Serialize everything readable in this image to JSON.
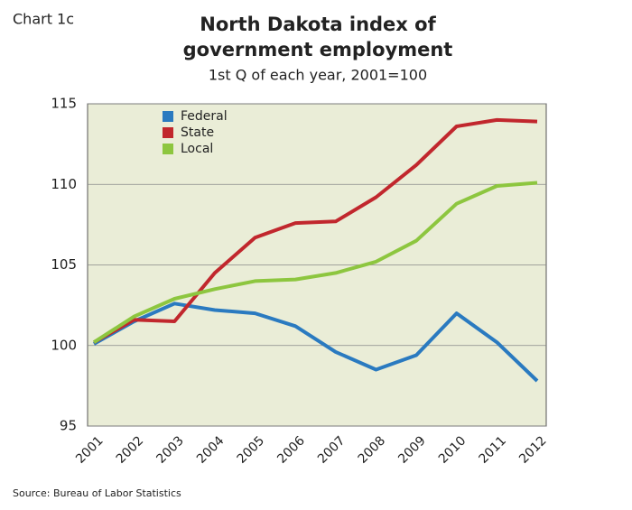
{
  "chart_data": {
    "type": "line",
    "label": "Chart 1c",
    "title": [
      "North Dakota index of",
      "government employment"
    ],
    "subtitle": "1st Q of each year, 2001=100",
    "source": "Source: Bureau of Labor Statistics",
    "categories": [
      "2001",
      "2002",
      "2003",
      "2004",
      "2005",
      "2006",
      "2007",
      "2008",
      "2009",
      "2010",
      "2011",
      "2012"
    ],
    "series": [
      {
        "name": "Federal",
        "color": "#2a7ac0",
        "values": [
          100.1,
          101.5,
          102.6,
          102.2,
          102.0,
          101.2,
          99.6,
          98.5,
          99.4,
          102.0,
          100.2,
          97.8
        ]
      },
      {
        "name": "State",
        "color": "#c1272d",
        "values": [
          100.2,
          101.6,
          101.5,
          104.5,
          106.7,
          107.6,
          107.7,
          109.2,
          111.2,
          113.6,
          114.0,
          113.9
        ]
      },
      {
        "name": "Local",
        "color": "#8dc63f",
        "values": [
          100.2,
          101.8,
          102.9,
          103.5,
          104.0,
          104.1,
          104.5,
          105.2,
          106.5,
          108.8,
          109.9,
          110.1
        ]
      }
    ],
    "ylim": [
      95,
      115
    ],
    "yticks": [
      95,
      100,
      105,
      110,
      115
    ],
    "grid": true,
    "legend": "top-left"
  }
}
